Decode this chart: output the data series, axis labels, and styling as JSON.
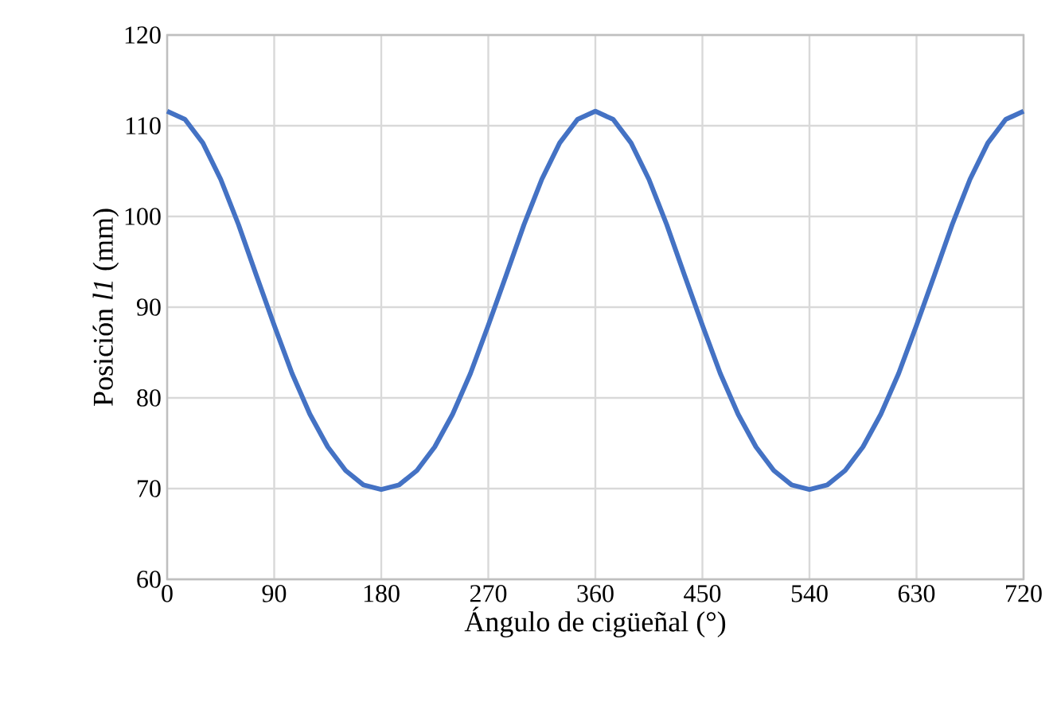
{
  "chart_data": {
    "type": "line",
    "xlabel": "Ángulo de cigüeñal (°)",
    "ylabel": "Posición *l1* (mm)",
    "xlim": [
      0,
      720
    ],
    "xticks": [
      0,
      90,
      180,
      270,
      360,
      450,
      540,
      630,
      720
    ],
    "ylim": [
      60,
      120
    ],
    "yticks": [
      60,
      70,
      80,
      90,
      100,
      110,
      120
    ],
    "grid": true,
    "marker": "none",
    "line_style": "solid",
    "x": [
      0,
      15,
      30,
      45,
      60,
      75,
      90,
      105,
      120,
      135,
      150,
      165,
      180,
      195,
      210,
      225,
      240,
      255,
      270,
      285,
      300,
      315,
      330,
      345,
      360,
      375,
      390,
      405,
      420,
      435,
      450,
      465,
      480,
      495,
      510,
      525,
      540,
      555,
      570,
      585,
      600,
      615,
      630,
      645,
      660,
      675,
      690,
      705,
      720
    ],
    "series": [
      {
        "color": "#4472c4",
        "values": [
          111.6,
          110.7,
          108.1,
          104.1,
          99.1,
          93.5,
          88.0,
          82.7,
          78.2,
          74.6,
          72.0,
          70.4,
          69.9,
          70.4,
          72.0,
          74.6,
          78.2,
          82.7,
          88.0,
          93.5,
          99.1,
          104.1,
          108.1,
          110.7,
          111.6,
          110.7,
          108.1,
          104.1,
          99.1,
          93.5,
          88.0,
          82.7,
          78.2,
          74.6,
          72.0,
          70.4,
          69.9,
          70.4,
          72.0,
          74.6,
          78.2,
          82.7,
          88.0,
          93.5,
          99.1,
          104.1,
          108.1,
          110.7,
          111.6
        ]
      }
    ]
  }
}
